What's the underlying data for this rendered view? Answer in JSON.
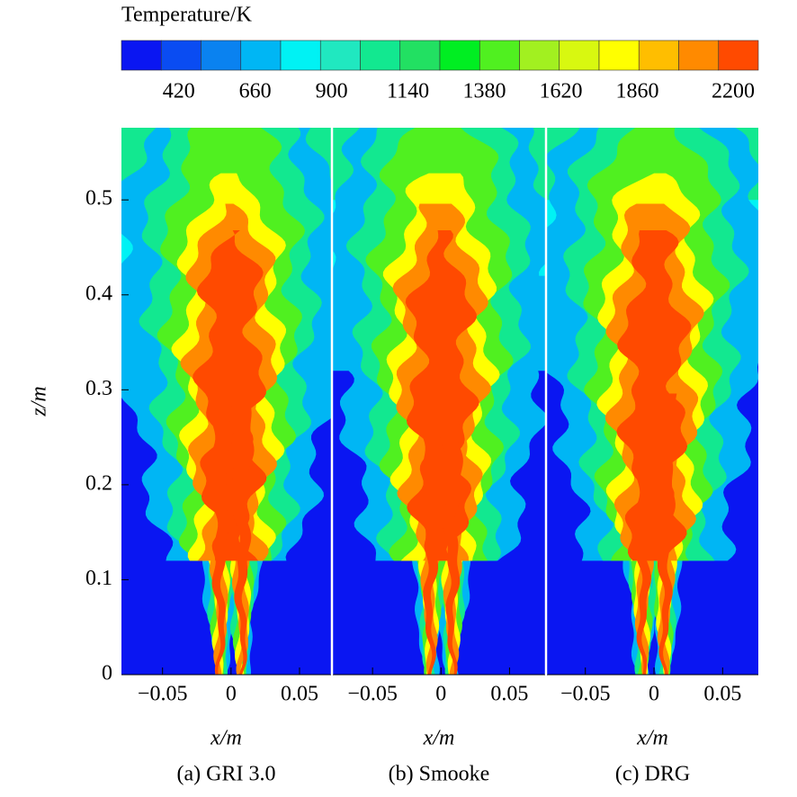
{
  "colorbar": {
    "title": "Temperature/K",
    "colors": [
      "#0a16f2",
      "#0a4cf2",
      "#0a82f0",
      "#00b6f4",
      "#00f2f4",
      "#20e8c0",
      "#12e890",
      "#22e062",
      "#00ee22",
      "#50f020",
      "#a2f020",
      "#d8f810",
      "#ffff00",
      "#ffbe00",
      "#ff8a00",
      "#ff4a00"
    ],
    "clim": [
      240,
      2240
    ],
    "ticks": [
      420,
      660,
      900,
      1140,
      1380,
      1620,
      1860,
      2200
    ]
  },
  "chart_data": [
    {
      "type": "contour",
      "caption": "(a) GRI 3.0",
      "xlabel": "x/m",
      "ylabel": "z/m",
      "xlim": [
        -0.08,
        0.073
      ],
      "ylim": [
        0,
        0.576
      ],
      "xticks": [
        {
          "value": -0.05,
          "label": "−0.05"
        },
        0,
        0.05
      ],
      "yticks": [
        0,
        0.1,
        0.2,
        0.3,
        0.4,
        0.5
      ]
    },
    {
      "type": "contour",
      "caption": "(b) Smooke",
      "xlabel": "x/m",
      "xlim": [
        -0.079,
        0.076
      ],
      "ylim": [
        0,
        0.576
      ],
      "xticks": [
        {
          "value": -0.05,
          "label": "−0.05"
        },
        0,
        0.05
      ]
    },
    {
      "type": "contour",
      "caption": "(c) DRG",
      "xlabel": "x/m",
      "xlim": [
        -0.078,
        0.076
      ],
      "ylim": [
        0,
        0.576
      ],
      "xticks": [
        {
          "value": -0.05,
          "label": "−0.05"
        },
        0,
        0.05
      ]
    }
  ]
}
